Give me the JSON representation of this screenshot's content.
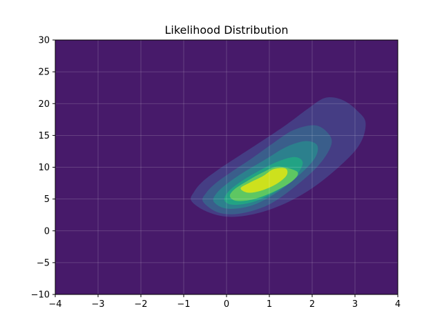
{
  "chart_data": {
    "type": "contour",
    "title": "Likelihood Distribution",
    "xlabel": "",
    "ylabel": "",
    "xlim": [
      -4,
      4
    ],
    "ylim": [
      -10,
      30
    ],
    "xticks": [
      -4,
      -3,
      -2,
      -1,
      0,
      1,
      2,
      3,
      4
    ],
    "yticks": [
      -10,
      -5,
      0,
      5,
      10,
      15,
      20,
      25,
      30
    ],
    "grid": true,
    "background_color": "#471a6a",
    "levels": [
      {
        "level": 1,
        "color": "#453d84",
        "polygon": [
          [
            -0.82,
            4.7
          ],
          [
            -0.75,
            6.2
          ],
          [
            -0.55,
            7.8
          ],
          [
            -0.2,
            9.6
          ],
          [
            0.25,
            11.6
          ],
          [
            0.8,
            14.0
          ],
          [
            1.4,
            16.7
          ],
          [
            1.9,
            19.2
          ],
          [
            2.3,
            20.9
          ],
          [
            2.7,
            20.6
          ],
          [
            3.05,
            18.9
          ],
          [
            3.25,
            16.8
          ],
          [
            3.05,
            13.0
          ],
          [
            2.3,
            8.2
          ],
          [
            1.55,
            4.9
          ],
          [
            0.8,
            2.9
          ],
          [
            0.1,
            2.2
          ],
          [
            -0.45,
            3.0
          ]
        ]
      },
      {
        "level": 2,
        "color": "#3a5e8b",
        "polygon": [
          [
            -0.55,
            4.6
          ],
          [
            -0.47,
            6.0
          ],
          [
            -0.25,
            7.5
          ],
          [
            0.1,
            9.2
          ],
          [
            0.55,
            11.2
          ],
          [
            1.05,
            13.6
          ],
          [
            1.55,
            15.8
          ],
          [
            2.05,
            16.6
          ],
          [
            2.35,
            15.5
          ],
          [
            2.45,
            13.6
          ],
          [
            2.15,
            10.3
          ],
          [
            1.55,
            6.7
          ],
          [
            0.95,
            4.0
          ],
          [
            0.3,
            2.7
          ],
          [
            -0.2,
            2.9
          ]
        ]
      },
      {
        "level": 3,
        "color": "#2c808d",
        "polygon": [
          [
            -0.3,
            4.6
          ],
          [
            -0.22,
            6.0
          ],
          [
            0.05,
            7.6
          ],
          [
            0.4,
            9.2
          ],
          [
            0.9,
            11.2
          ],
          [
            1.4,
            13.2
          ],
          [
            1.85,
            14.1
          ],
          [
            2.12,
            13.4
          ],
          [
            2.05,
            11.3
          ],
          [
            1.65,
            8.5
          ],
          [
            1.1,
            5.7
          ],
          [
            0.55,
            3.9
          ],
          [
            0.0,
            3.5
          ]
        ]
      },
      {
        "level": 4,
        "color": "#22a384",
        "polygon": [
          [
            -0.05,
            4.8
          ],
          [
            0.05,
            6.2
          ],
          [
            0.35,
            7.8
          ],
          [
            0.75,
            9.4
          ],
          [
            1.2,
            10.9
          ],
          [
            1.6,
            11.6
          ],
          [
            1.78,
            10.6
          ],
          [
            1.55,
            8.1
          ],
          [
            1.1,
            6.0
          ],
          [
            0.6,
            4.5
          ],
          [
            0.15,
            4.1
          ]
        ]
      },
      {
        "level": 5,
        "color": "#5ec762",
        "polygon": [
          [
            0.08,
            5.4
          ],
          [
            0.18,
            6.5
          ],
          [
            0.5,
            7.9
          ],
          [
            0.85,
            9.2
          ],
          [
            1.2,
            10.1
          ],
          [
            1.65,
            9.3
          ],
          [
            1.55,
            7.9
          ],
          [
            1.15,
            6.3
          ],
          [
            0.65,
            5.0
          ],
          [
            0.25,
            4.7
          ]
        ]
      },
      {
        "level": 6,
        "color": "#cde11d",
        "polygon": [
          [
            0.33,
            6.7
          ],
          [
            0.55,
            7.6
          ],
          [
            0.85,
            8.6
          ],
          [
            1.1,
            9.7
          ],
          [
            1.38,
            9.8
          ],
          [
            1.4,
            8.7
          ],
          [
            1.15,
            7.3
          ],
          [
            0.8,
            6.3
          ],
          [
            0.5,
            6.0
          ]
        ]
      }
    ]
  },
  "legend": {}
}
